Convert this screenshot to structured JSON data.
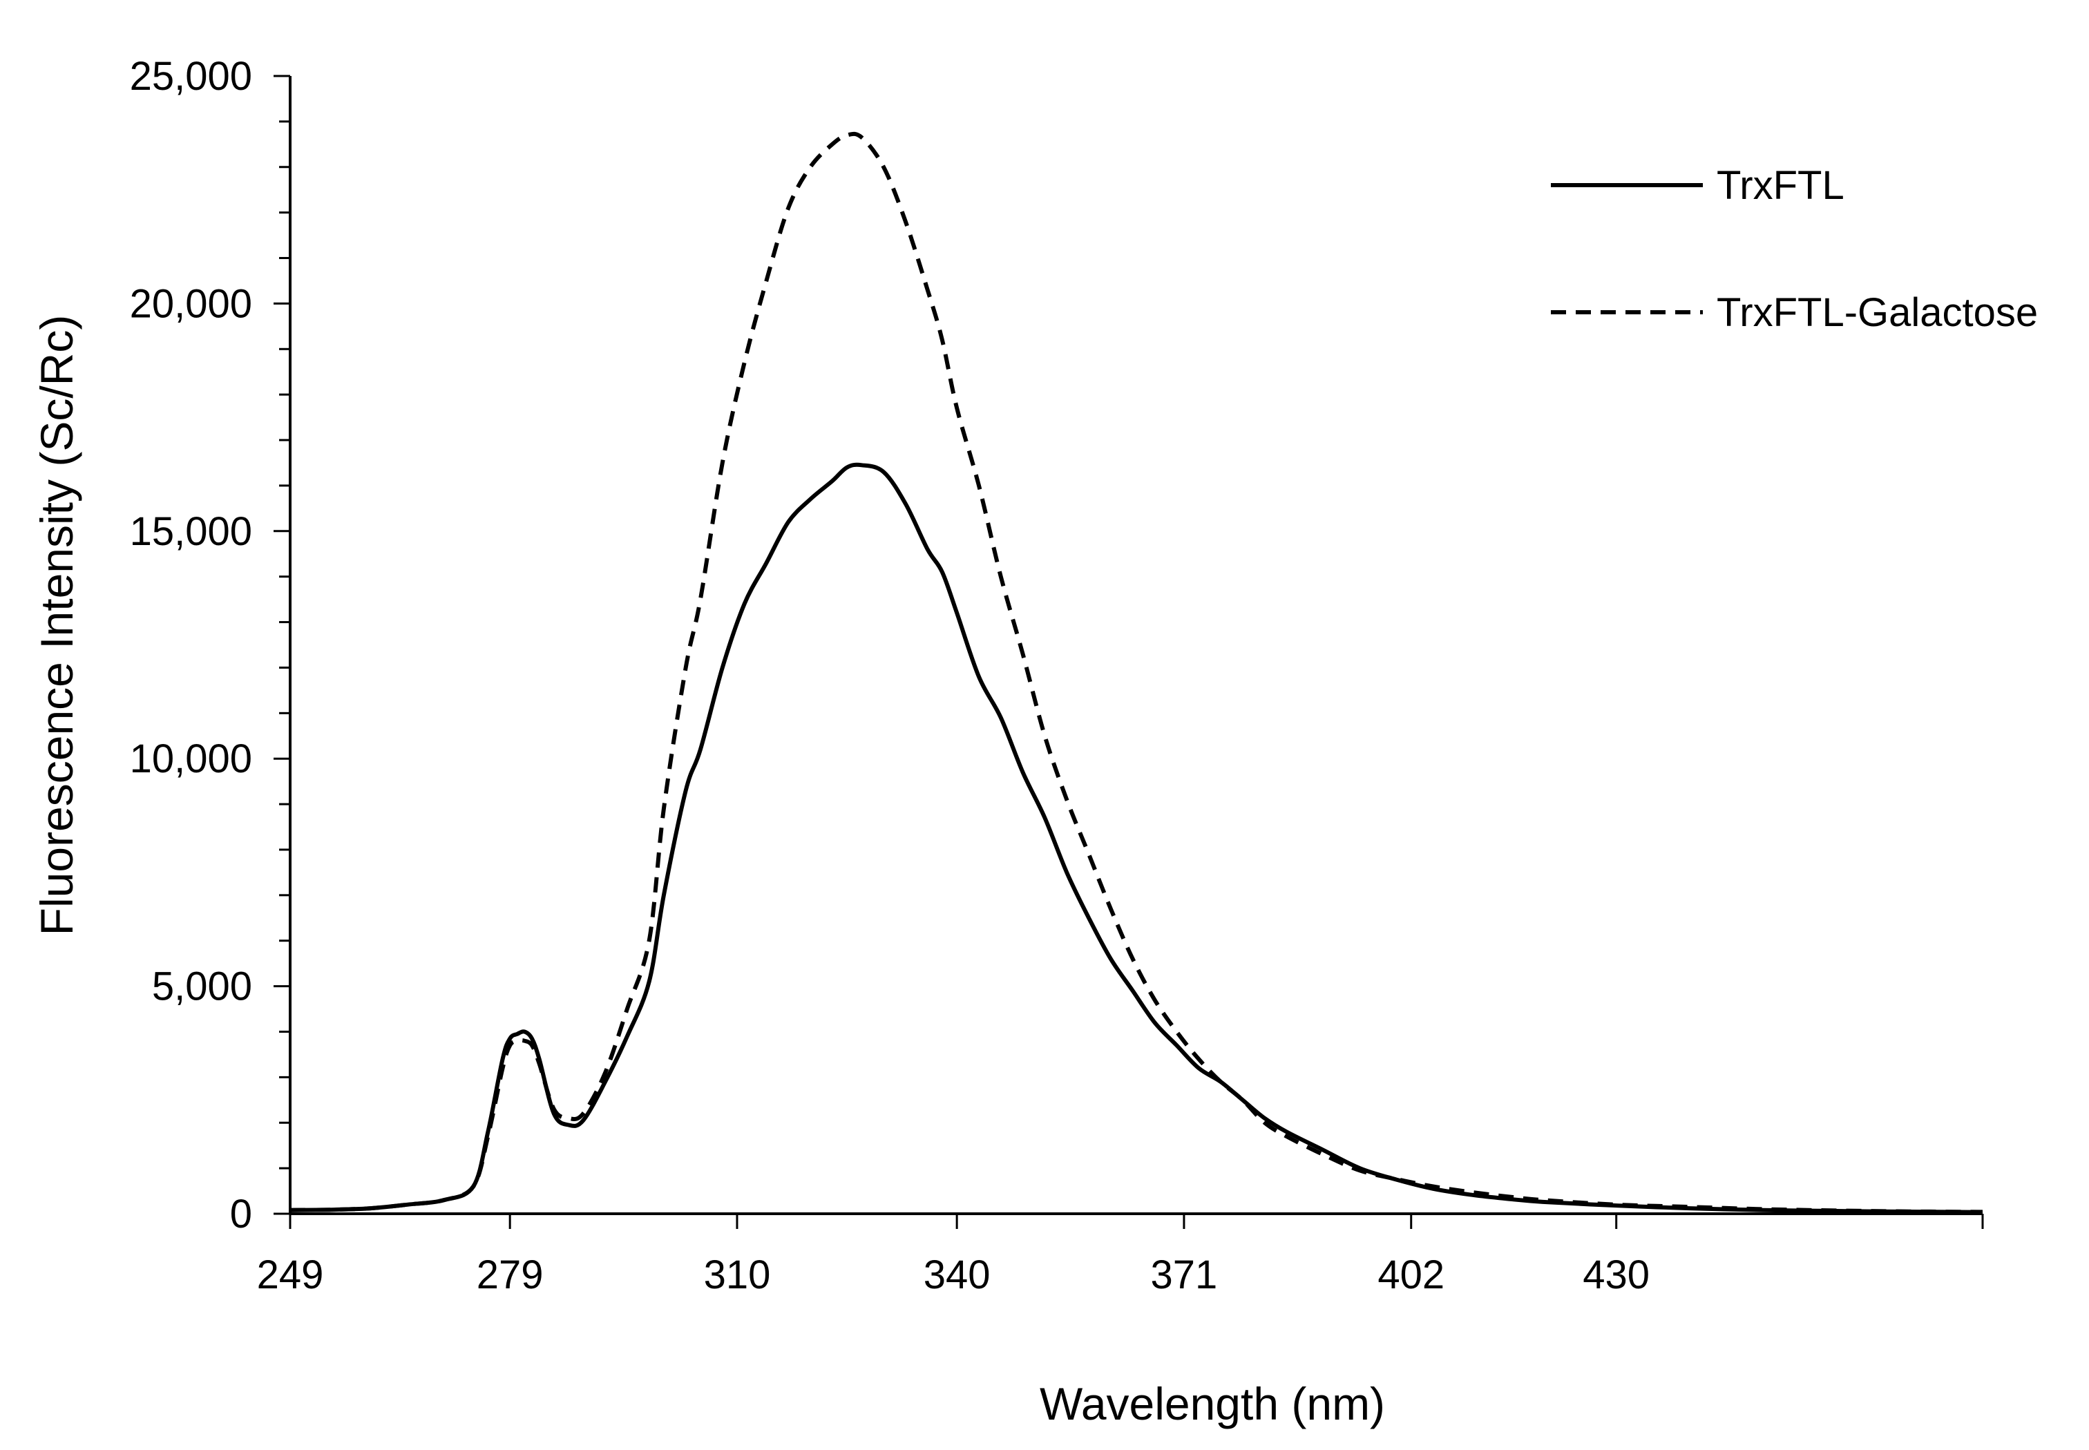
{
  "chart_data": {
    "type": "line",
    "title": "",
    "xlabel": "Wavelength (nm)",
    "ylabel": "Fluorescence Intensity (Sc/Rc)",
    "xlim": [
      249,
      480
    ],
    "ylim": [
      0,
      25000
    ],
    "x_ticks": [
      249,
      279,
      310,
      340,
      371,
      402,
      430
    ],
    "x_tick_labels": [
      "249",
      "279",
      "310",
      "340",
      "371",
      "402",
      "430"
    ],
    "y_ticks": [
      0,
      5000,
      10000,
      15000,
      20000,
      25000
    ],
    "y_tick_labels": [
      "0",
      "5,000",
      "10,000",
      "15,000",
      "20,000",
      "25,000"
    ],
    "grid": false,
    "legend_position": "top-right",
    "series": [
      {
        "name": "TrxFTL",
        "style": "solid",
        "color": "#000000",
        "x": [
          249,
          255,
          260,
          265,
          270,
          274,
          276,
          278,
          279,
          280,
          281,
          282,
          283,
          285,
          287,
          289,
          292,
          295,
          298,
          300,
          303,
          305,
          308,
          311,
          314,
          317,
          320,
          323,
          325,
          327,
          330,
          333,
          336,
          338,
          340,
          343,
          346,
          349,
          352,
          355,
          358,
          361,
          364,
          367,
          370,
          373,
          376,
          379,
          382,
          385,
          390,
          395,
          400,
          405,
          410,
          415,
          420,
          430,
          440,
          450,
          460,
          470,
          480
        ],
        "values": [
          80,
          90,
          120,
          200,
          300,
          600,
          1800,
          3400,
          3850,
          3950,
          4000,
          3850,
          3400,
          2200,
          1950,
          2050,
          2900,
          3900,
          5100,
          7000,
          9300,
          10200,
          12000,
          13400,
          14300,
          15200,
          15700,
          16100,
          16400,
          16450,
          16300,
          15600,
          14600,
          14100,
          13200,
          11800,
          10900,
          9700,
          8700,
          7500,
          6500,
          5600,
          4900,
          4200,
          3700,
          3200,
          2900,
          2500,
          2100,
          1800,
          1400,
          1000,
          750,
          550,
          420,
          330,
          260,
          180,
          120,
          80,
          60,
          45,
          35
        ]
      },
      {
        "name": "TrxFTL-Galactose",
        "style": "dashed",
        "color": "#000000",
        "x": [
          249,
          255,
          260,
          265,
          270,
          274,
          276,
          278,
          279,
          280,
          281,
          282,
          283,
          285,
          287,
          289,
          292,
          295,
          298,
          300,
          303,
          305,
          308,
          311,
          314,
          317,
          320,
          323,
          325,
          327,
          330,
          333,
          336,
          338,
          340,
          343,
          346,
          349,
          352,
          355,
          358,
          361,
          364,
          367,
          370,
          373,
          376,
          379,
          382,
          385,
          390,
          395,
          400,
          405,
          410,
          415,
          420,
          430,
          440,
          450,
          460,
          470,
          480
        ],
        "values": [
          80,
          90,
          120,
          200,
          300,
          600,
          1700,
          3200,
          3700,
          3800,
          3800,
          3700,
          3300,
          2300,
          2100,
          2200,
          3100,
          4500,
          6000,
          8900,
          12000,
          13500,
          16500,
          18700,
          20500,
          22100,
          23000,
          23500,
          23700,
          23650,
          23000,
          21800,
          20300,
          19200,
          17700,
          16000,
          14000,
          12300,
          10500,
          9100,
          7900,
          6700,
          5600,
          4700,
          4000,
          3400,
          2900,
          2500,
          2000,
          1700,
          1300,
          950,
          760,
          600,
          480,
          380,
          300,
          200,
          150,
          100,
          70,
          50,
          40
        ]
      }
    ]
  }
}
